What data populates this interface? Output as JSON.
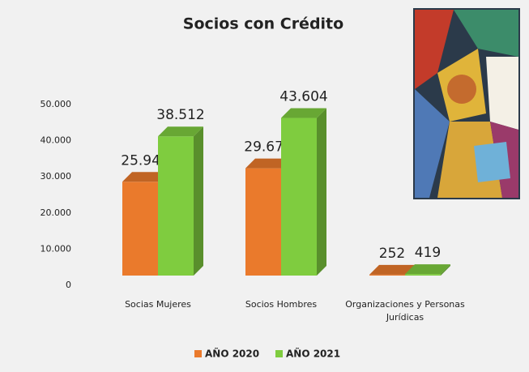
{
  "chart_data": {
    "type": "bar3d",
    "title": "Socios con Crédito",
    "categories": [
      "Socias Mujeres",
      "Socios Hombres",
      "Organizaciones y Personas Jurídicas"
    ],
    "series": [
      {
        "name": "AÑO 2020",
        "color": "#ea7a2c",
        "values": [
          25945,
          29678,
          252
        ],
        "value_labels": [
          "25.945",
          "29.678",
          "252"
        ]
      },
      {
        "name": "AÑO 2021",
        "color": "#7fcc3f",
        "values": [
          38512,
          43604,
          419
        ],
        "value_labels": [
          "38.512",
          "43.604",
          "419"
        ]
      }
    ],
    "ylim": [
      0,
      50000
    ],
    "yticks": [
      0,
      {
        "value": 10000,
        "label": "10.000"
      },
      {
        "value": 20000,
        "label": "20.000"
      },
      {
        "value": 30000,
        "label": "30.000"
      },
      {
        "value": 40000,
        "label": "40.000"
      },
      {
        "value": 50000,
        "label": "50.000"
      }
    ],
    "grid": false,
    "legend": "bottom"
  }
}
